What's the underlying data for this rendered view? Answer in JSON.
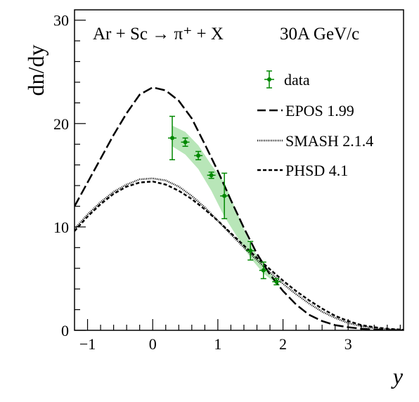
{
  "chart_data": {
    "type": "line",
    "title": "Ar + Sc → π⁺ + X",
    "energy_label": "30A GeV/c",
    "xlabel": "y",
    "ylabel": "dn/dy",
    "xlim": [
      -1.2,
      3.85
    ],
    "ylim": [
      0,
      31
    ],
    "x_ticks": [
      -1,
      0,
      1,
      2,
      3
    ],
    "y_ticks": [
      0,
      10,
      20,
      30
    ],
    "x_tick_labels": [
      "−1",
      "0",
      "1",
      "2",
      "3"
    ],
    "y_tick_labels": [
      "0",
      "10",
      "20",
      "30"
    ],
    "grid": false,
    "legend_position": "top-right",
    "data": {
      "name": "data",
      "color": "#008800",
      "band_color": "#b8e6b8",
      "x": [
        0.3,
        0.5,
        0.7,
        0.9,
        1.1,
        1.5,
        1.7,
        1.9
      ],
      "y": [
        18.6,
        18.2,
        16.9,
        15.0,
        13.0,
        7.7,
        5.8,
        4.7
      ],
      "yerr": [
        2.1,
        0.4,
        0.4,
        0.3,
        2.2,
        0.9,
        0.8,
        0.3
      ],
      "band_x": [
        0.3,
        0.5,
        0.7,
        0.9,
        1.1,
        1.5,
        1.7,
        1.9
      ],
      "band_lo": [
        17.8,
        17.0,
        15.6,
        13.5,
        11.0,
        7.0,
        5.5,
        4.5
      ],
      "band_hi": [
        19.8,
        19.2,
        17.9,
        16.0,
        14.3,
        8.3,
        6.2,
        4.9
      ]
    },
    "series": [
      {
        "name": "EPOS 1.99",
        "style": "long-dash",
        "x": [
          -1.2,
          -1.0,
          -0.8,
          -0.6,
          -0.4,
          -0.2,
          0.0,
          0.2,
          0.4,
          0.6,
          0.8,
          1.0,
          1.2,
          1.4,
          1.6,
          1.8,
          2.0,
          2.2,
          2.4,
          2.6,
          2.8,
          3.0,
          3.2,
          3.4,
          3.6,
          3.85
        ],
        "y": [
          12.0,
          14.3,
          16.6,
          18.9,
          21.0,
          22.8,
          23.5,
          23.2,
          22.2,
          20.5,
          18.0,
          15.4,
          12.6,
          9.9,
          7.4,
          5.4,
          3.8,
          2.5,
          1.5,
          0.9,
          0.5,
          0.3,
          0.15,
          0.07,
          0.03,
          0.0
        ]
      },
      {
        "name": "SMASH 2.1.4",
        "style": "dotted",
        "x": [
          -1.2,
          -1.0,
          -0.8,
          -0.6,
          -0.4,
          -0.2,
          0.0,
          0.2,
          0.4,
          0.6,
          0.8,
          1.0,
          1.2,
          1.4,
          1.6,
          1.8,
          2.0,
          2.2,
          2.4,
          2.6,
          2.8,
          3.0,
          3.2,
          3.4,
          3.6,
          3.85
        ],
        "y": [
          9.8,
          11.2,
          12.4,
          13.4,
          14.1,
          14.6,
          14.7,
          14.5,
          13.9,
          13.0,
          11.9,
          10.6,
          9.3,
          8.0,
          6.8,
          5.6,
          4.5,
          3.5,
          2.6,
          1.8,
          1.2,
          0.7,
          0.4,
          0.2,
          0.1,
          0.05
        ]
      },
      {
        "name": "PHSD 4.1",
        "style": "short-dash",
        "x": [
          -1.2,
          -1.0,
          -0.8,
          -0.6,
          -0.4,
          -0.2,
          0.0,
          0.2,
          0.4,
          0.6,
          0.8,
          1.0,
          1.2,
          1.4,
          1.6,
          1.8,
          2.0,
          2.2,
          2.4,
          2.6,
          2.8,
          3.0,
          3.2,
          3.4,
          3.6,
          3.85
        ],
        "y": [
          9.6,
          11.0,
          12.2,
          13.2,
          13.9,
          14.3,
          14.4,
          14.1,
          13.5,
          12.7,
          11.7,
          10.6,
          9.4,
          8.2,
          7.0,
          5.9,
          4.8,
          3.8,
          2.9,
          2.1,
          1.4,
          0.9,
          0.5,
          0.3,
          0.15,
          0.05
        ]
      }
    ]
  }
}
